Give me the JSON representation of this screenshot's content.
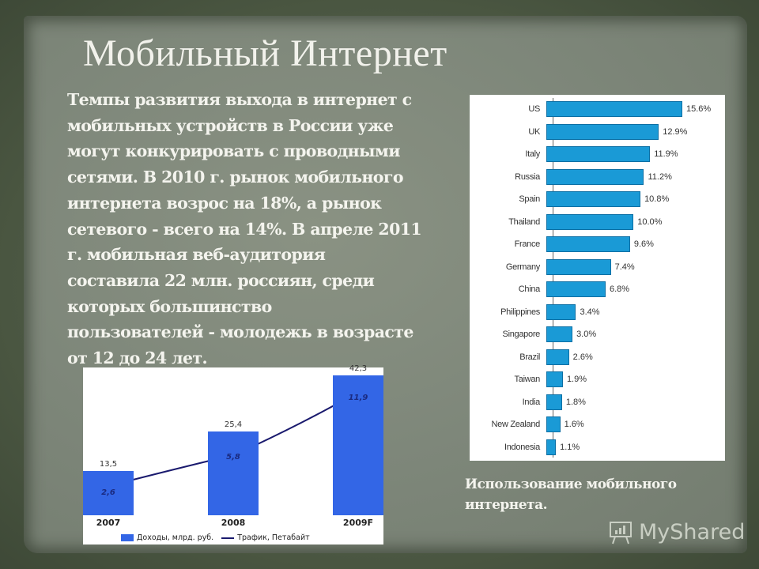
{
  "slide": {
    "title": "Мобильный Интернет",
    "body_lines": [
      "Темпы развития выхода в интернет с",
      "мобильных устройств в России уже",
      "могут конкурировать с проводными",
      "сетями. В 2010 г. рынок мобильного",
      "интернета возрос на 18%, а рынок",
      "сетевого - всего на 14%. В апреле 2011",
      "г. мобильная веб-аудитория",
      "составила 22 млн. россиян, среди",
      "которых большинство",
      "пользователей - молодежь в возрасте",
      "от 12 до 24 лет."
    ],
    "caption_lines": [
      "Использование мобильного",
      "интернета."
    ],
    "watermark": "MyShared",
    "colors": {
      "revenue_bar": "#3366e6",
      "traffic_line": "#1a1a6e",
      "country_bar": "#1a9ad6"
    }
  },
  "chart_data": [
    {
      "type": "bar",
      "title": "",
      "categories": [
        "2007",
        "2008",
        "2009F"
      ],
      "series": [
        {
          "name": "Доходы, млрд. руб.",
          "type": "bar",
          "values": [
            13.5,
            25.4,
            42.3
          ],
          "labels": [
            "13,5",
            "25,4",
            "42,3"
          ]
        },
        {
          "name": "Трафик, Петабайт",
          "type": "line",
          "values": [
            2.6,
            5.8,
            11.9
          ],
          "labels": [
            "2,6",
            "5,8",
            "11,9"
          ]
        }
      ],
      "legend": [
        "Доходы, млрд. руб.",
        "Трафик, Петабайт"
      ],
      "legend_position": "bottom",
      "grid": false
    },
    {
      "type": "bar",
      "orientation": "horizontal",
      "title": "Использование мобильного интернета.",
      "categories": [
        "US",
        "UK",
        "Italy",
        "Russia",
        "Spain",
        "Thailand",
        "France",
        "Germany",
        "China",
        "Philippines",
        "Singapore",
        "Brazil",
        "Taiwan",
        "India",
        "New Zealand",
        "Indonesia"
      ],
      "values": [
        15.6,
        12.9,
        11.9,
        11.2,
        10.8,
        10.0,
        9.6,
        7.4,
        6.8,
        3.4,
        3.0,
        2.6,
        1.9,
        1.8,
        1.6,
        1.1
      ],
      "labels": [
        "15.6%",
        "12.9%",
        "11.9%",
        "11.2%",
        "10.8%",
        "10.0%",
        "9.6%",
        "7.4%",
        "6.8%",
        "3.4%",
        "3.0%",
        "2.6%",
        "1.9%",
        "1.8%",
        "1.6%",
        "1.1%"
      ],
      "unit": "%",
      "grid": false
    }
  ]
}
